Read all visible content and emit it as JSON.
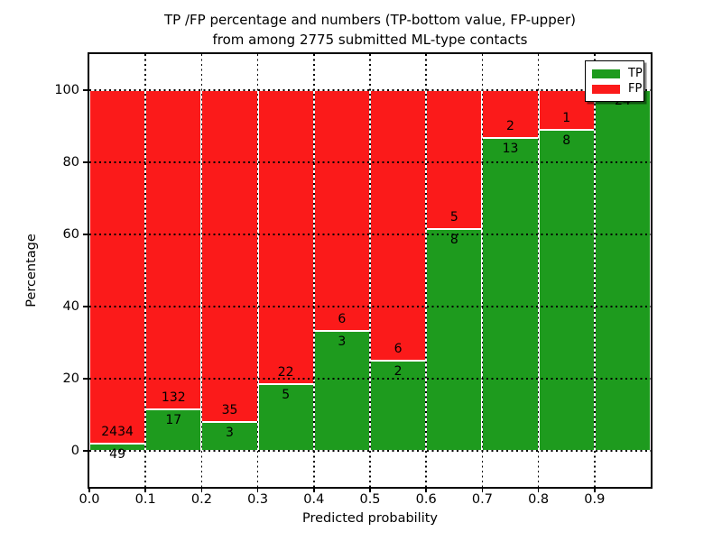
{
  "title": {
    "line1": "TP /FP percentage and numbers (TP-bottom value, FP-upper)",
    "line2": "from among 2775 submitted ML-type contacts"
  },
  "axes": {
    "xlabel": "Predicted probability",
    "ylabel": "Percentage",
    "xticks": [
      "0.0",
      "0.1",
      "0.2",
      "0.3",
      "0.4",
      "0.5",
      "0.6",
      "0.7",
      "0.8",
      "0.9"
    ],
    "yticks": [
      "0",
      "20",
      "40",
      "60",
      "80",
      "100"
    ]
  },
  "legend": {
    "items": [
      {
        "label": "TP",
        "color": "#1e9b1e"
      },
      {
        "label": "FP",
        "color": "#fb1a1a"
      }
    ]
  },
  "colors": {
    "tp_green": "#1e9b1e",
    "fp_red": "#fb1a1a",
    "grid": "#000000",
    "background": "#ffffff"
  },
  "chart_data": {
    "type": "bar",
    "subtype": "stacked-percentage-histogram",
    "title": "TP /FP percentage and numbers (TP-bottom value, FP-upper) from among 2775 submitted ML-type contacts",
    "xlabel": "Predicted probability",
    "ylabel": "Percentage",
    "xlim": [
      0,
      1.0
    ],
    "ylim": [
      -10,
      110
    ],
    "grid": true,
    "legend_position": "upper right",
    "total_contacts": 2775,
    "bins": [
      "0.0-0.1",
      "0.1-0.2",
      "0.2-0.3",
      "0.3-0.4",
      "0.4-0.5",
      "0.5-0.6",
      "0.6-0.7",
      "0.7-0.8",
      "0.8-0.9",
      "0.9-1.0"
    ],
    "bin_edges": [
      0.0,
      0.1,
      0.2,
      0.3,
      0.4,
      0.5,
      0.6,
      0.7,
      0.8,
      0.9,
      1.0
    ],
    "series": [
      {
        "name": "TP",
        "counts": [
          49,
          17,
          3,
          5,
          3,
          2,
          8,
          13,
          8,
          24
        ]
      },
      {
        "name": "FP",
        "counts": [
          2434,
          132,
          35,
          22,
          6,
          6,
          5,
          2,
          1,
          0
        ]
      }
    ],
    "tp_percentage_approx": [
      2.0,
      11.4,
      7.9,
      18.5,
      33.3,
      25.0,
      61.5,
      86.7,
      88.9,
      100.0
    ]
  },
  "geometry_note": "bars stacked to 100%, TP count label below TP/FP boundary, FP count label above boundary"
}
